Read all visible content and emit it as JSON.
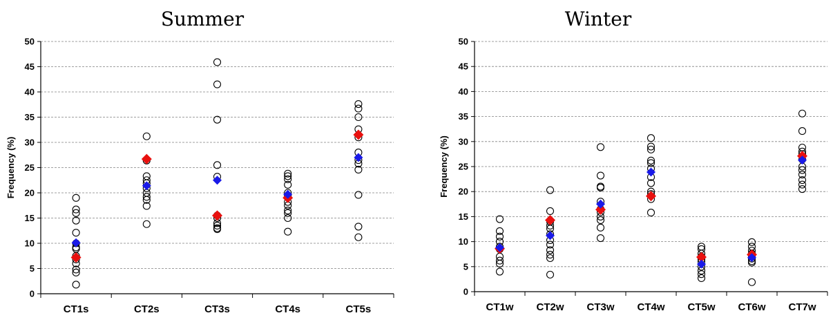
{
  "chart_data": [
    {
      "type": "scatter",
      "title": "Summer",
      "ylabel": "Frequency (%)",
      "ylim": [
        0,
        50
      ],
      "yticks": [
        0,
        5,
        10,
        15,
        20,
        25,
        30,
        35,
        40,
        45,
        50
      ],
      "grid": true,
      "categories": [
        "CT1s",
        "CT2s",
        "CT3s",
        "CT4s",
        "CT5s"
      ],
      "points": [
        [
          19.0,
          16.7,
          16.0,
          14.5,
          12.1,
          10.0,
          9.2,
          8.9,
          7.5,
          6.8,
          6.0,
          4.8,
          4.2,
          1.8
        ],
        [
          31.2,
          26.4,
          23.3,
          22.5,
          21.9,
          20.9,
          20.0,
          19.2,
          18.6,
          17.4,
          13.8
        ],
        [
          45.9,
          41.5,
          34.5,
          25.5,
          23.2,
          15.5,
          15.0,
          14.0,
          13.5,
          13.0,
          12.8
        ],
        [
          23.8,
          23.3,
          22.7,
          21.6,
          20.0,
          19.5,
          18.2,
          17.5,
          16.5,
          16.0,
          15.0,
          12.3
        ],
        [
          37.6,
          36.7,
          35.0,
          32.6,
          31.0,
          28.0,
          26.5,
          25.8,
          24.6,
          19.6,
          13.3,
          11.2
        ]
      ],
      "red_markers": [
        7.2,
        26.7,
        15.5,
        19.0,
        31.5
      ],
      "blue_markers": [
        10.1,
        21.4,
        22.5,
        19.7,
        27.0
      ],
      "colors": {
        "red": "#e8110f",
        "blue": "#1a1ae8",
        "grid": "#808080",
        "circle_stroke": "#000000"
      }
    },
    {
      "type": "scatter",
      "title": "Winter",
      "ylabel": "Frequency (%)",
      "ylim": [
        0,
        50
      ],
      "yticks": [
        0,
        5,
        10,
        15,
        20,
        25,
        30,
        35,
        40,
        45,
        50
      ],
      "grid": true,
      "categories": [
        "CT1w",
        "CT2w",
        "CT3w",
        "CT4w",
        "CT5w",
        "CT6w",
        "CT7w"
      ],
      "points": [
        [
          14.5,
          12.1,
          11.0,
          10.0,
          9.0,
          8.5,
          7.0,
          6.2,
          5.6,
          4.0
        ],
        [
          20.3,
          16.1,
          14.0,
          13.2,
          12.6,
          11.5,
          10.3,
          9.4,
          8.3,
          7.4,
          6.7,
          3.4
        ],
        [
          28.9,
          23.2,
          21.0,
          20.8,
          18.0,
          16.5,
          15.9,
          15.0,
          14.3,
          12.8,
          10.7
        ],
        [
          30.7,
          29.0,
          28.4,
          26.2,
          25.7,
          24.6,
          22.9,
          21.7,
          20.0,
          19.5,
          18.5,
          15.8
        ],
        [
          9.0,
          8.5,
          7.6,
          7.0,
          6.5,
          6.0,
          5.0,
          4.2,
          3.5,
          2.7
        ],
        [
          9.9,
          9.0,
          8.2,
          7.6,
          7.1,
          6.6,
          6.1,
          5.8,
          1.9
        ],
        [
          35.6,
          32.1,
          28.8,
          28.0,
          27.5,
          26.4,
          25.0,
          24.3,
          23.4,
          22.3,
          21.4,
          20.5
        ]
      ],
      "red_markers": [
        8.6,
        14.3,
        16.4,
        19.1,
        6.9,
        7.4,
        27.1
      ],
      "blue_markers": [
        8.8,
        11.2,
        17.5,
        23.9,
        5.5,
        6.8,
        26.3
      ],
      "colors": {
        "red": "#e8110f",
        "blue": "#1a1ae8",
        "grid": "#808080",
        "circle_stroke": "#000000"
      }
    }
  ]
}
